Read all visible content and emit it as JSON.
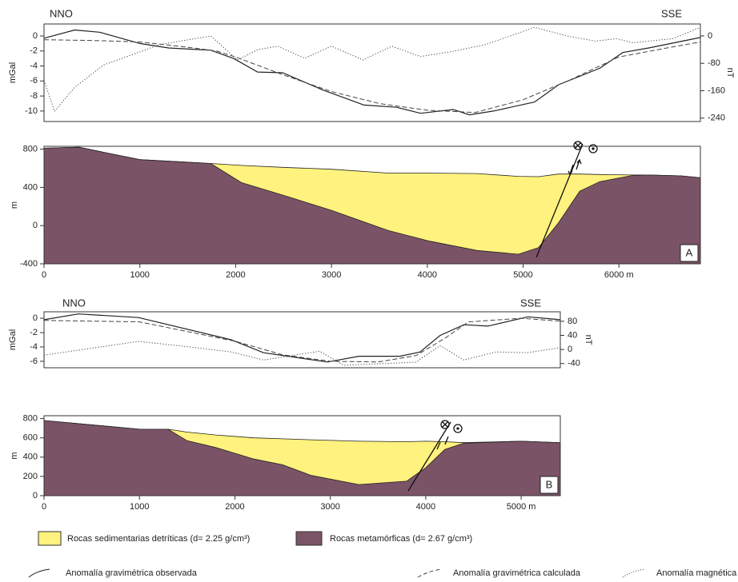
{
  "chart_data": [
    {
      "type": "line",
      "annotations": [
        "NNO",
        "SSE"
      ],
      "ylabel": "mGal",
      "y2label": "nT",
      "xlim": [
        0,
        6850
      ],
      "ylim": [
        -11.4,
        1.6
      ],
      "yticks": [
        0,
        -2,
        -4,
        -6,
        -8,
        -10
      ],
      "y2lim": [
        -250,
        35
      ],
      "y2ticks": [
        0,
        -80,
        -160,
        -240
      ],
      "series": [
        {
          "name": "Anomalía gravimétrica observada",
          "color": "#222222",
          "dash": "solid",
          "x": [
            0,
            320,
            580,
            1000,
            1300,
            1740,
            1980,
            2230,
            2490,
            2910,
            3340,
            3680,
            3930,
            4270,
            4440,
            4690,
            5120,
            5370,
            5800,
            6040,
            6310,
            6850
          ],
          "values": [
            -0.3,
            0.8,
            0.5,
            -1.0,
            -1.6,
            -1.9,
            -3,
            -4.8,
            -4.9,
            -7.2,
            -9.2,
            -9.5,
            -10.3,
            -9.8,
            -10.5,
            -10,
            -8.8,
            -6.5,
            -4.3,
            -2.2,
            -1.6,
            -0.2
          ]
        },
        {
          "name": "Anomalía gravimétrica calculada",
          "color": "#444444",
          "dash": "dashed",
          "x": [
            0,
            500,
            1000,
            1500,
            1800,
            2000,
            2500,
            3000,
            3500,
            4000,
            4500,
            5000,
            5500,
            6000,
            6500,
            6850
          ],
          "values": [
            -0.5,
            -0.6,
            -0.8,
            -1.5,
            -2,
            -2.8,
            -5.2,
            -7.4,
            -9,
            -9.9,
            -10.2,
            -8.5,
            -5.8,
            -2.8,
            -1.6,
            -0.8
          ]
        },
        {
          "name": "Anomalía magnética",
          "color": "#444444",
          "dash": "dotted",
          "axis": "y2",
          "x": [
            0,
            110,
            320,
            620,
            1210,
            1740,
            2020,
            2230,
            2440,
            2720,
            3000,
            3330,
            3630,
            3930,
            4270,
            4610,
            5120,
            5460,
            5750,
            5980,
            6140,
            6560,
            6850
          ],
          "values": [
            -130,
            -220,
            -150,
            -85,
            -25,
            0,
            -70,
            -40,
            -30,
            -65,
            -30,
            -70,
            -30,
            -60,
            -45,
            -25,
            25,
            0,
            -15,
            -8,
            -20,
            -8,
            25
          ]
        }
      ]
    },
    {
      "type": "section",
      "panel_label": "A",
      "ylabel": "m",
      "xlim": [
        0,
        6850
      ],
      "ylim": [
        -400,
        830
      ],
      "xticks": [
        0,
        1000,
        2000,
        3000,
        4000,
        5000,
        {
          "value": 6000,
          "label": "6000 m"
        }
      ],
      "yticks": [
        800,
        400,
        0,
        -400
      ],
      "x": [
        0,
        365,
        1000,
        1740,
        2060,
        2490,
        3000,
        3590,
        4010,
        4520,
        4950,
        5160,
        5370,
        5590,
        5800,
        6140,
        6310,
        6650,
        6850
      ],
      "series": [
        {
          "name": "Rocas sedimentarias detríticas (d= 2.25 g/cm³)",
          "color": "#fff27e",
          "values": [
            810,
            820,
            690,
            650,
            630,
            610,
            590,
            550,
            550,
            545,
            515,
            512,
            540,
            540,
            535,
            530,
            530,
            520,
            500
          ]
        },
        {
          "name": "Rocas metamórficas  (d= 2.67 g/cm³)",
          "color": "#7b5367",
          "values": [
            810,
            820,
            690,
            650,
            450,
            320,
            160,
            -50,
            -160,
            -260,
            -300,
            -230,
            30,
            360,
            460,
            525,
            530,
            520,
            500
          ]
        }
      ]
    },
    {
      "type": "line",
      "annotations": [
        "NNO",
        "SSE"
      ],
      "ylabel": "mGal",
      "y2label": "nT",
      "xlim": [
        0,
        5410
      ],
      "ylim": [
        -6.9,
        0.9
      ],
      "yticks": [
        0,
        -2,
        -4,
        -6
      ],
      "y2lim": [
        -52,
        107
      ],
      "y2ticks": [
        80,
        40,
        0,
        -40
      ],
      "series": [
        {
          "color": "#222222",
          "dash": "solid",
          "x": [
            0,
            360,
            990,
            1960,
            2300,
            2970,
            3300,
            3730,
            3940,
            4150,
            4400,
            4650,
            5070,
            5410
          ],
          "values": [
            -0.2,
            0.6,
            0.1,
            -3,
            -4.8,
            -6.1,
            -5.3,
            -5.3,
            -4.7,
            -2.4,
            -0.9,
            -1.1,
            0.2,
            -0.2
          ]
        },
        {
          "color": "#444444",
          "dash": "dashed",
          "x": [
            0,
            1000,
            2000,
            2500,
            3000,
            3500,
            3900,
            4200,
            4450,
            5000,
            5410
          ],
          "values": [
            -0.3,
            -0.5,
            -3.2,
            -5.1,
            -6,
            -6.1,
            -5.2,
            -2.8,
            -0.5,
            0,
            -0.4
          ]
        },
        {
          "color": "#444444",
          "dash": "dotted",
          "axis": "y2",
          "x": [
            0,
            360,
            990,
            1460,
            1960,
            2300,
            2890,
            3140,
            3900,
            4150,
            4400,
            4740,
            5070,
            5410
          ],
          "values": [
            -16,
            -2,
            23,
            9,
            -7,
            -30,
            -5,
            -45,
            -36,
            11,
            -30,
            -7,
            -9,
            5
          ]
        }
      ]
    },
    {
      "type": "section",
      "panel_label": "B",
      "ylabel": "m",
      "xlim": [
        0,
        5410
      ],
      "ylim": [
        0,
        830
      ],
      "xticks": [
        0,
        1000,
        2000,
        3000,
        4000,
        {
          "value": 5000,
          "label": "5000 m"
        }
      ],
      "yticks": [
        800,
        600,
        400,
        200,
        0
      ],
      "x": [
        0,
        1000,
        1300,
        1500,
        1800,
        2200,
        2500,
        2800,
        3300,
        3800,
        4000,
        4200,
        4400,
        5000,
        5410
      ],
      "series": [
        {
          "color": "#fff27e",
          "values": [
            780,
            690,
            690,
            660,
            630,
            600,
            590,
            580,
            565,
            560,
            565,
            560,
            550,
            565,
            550
          ]
        },
        {
          "color": "#7b5367",
          "values": [
            780,
            690,
            690,
            570,
            500,
            380,
            320,
            210,
            115,
            150,
            290,
            480,
            545,
            565,
            550
          ]
        }
      ]
    }
  ]
}
